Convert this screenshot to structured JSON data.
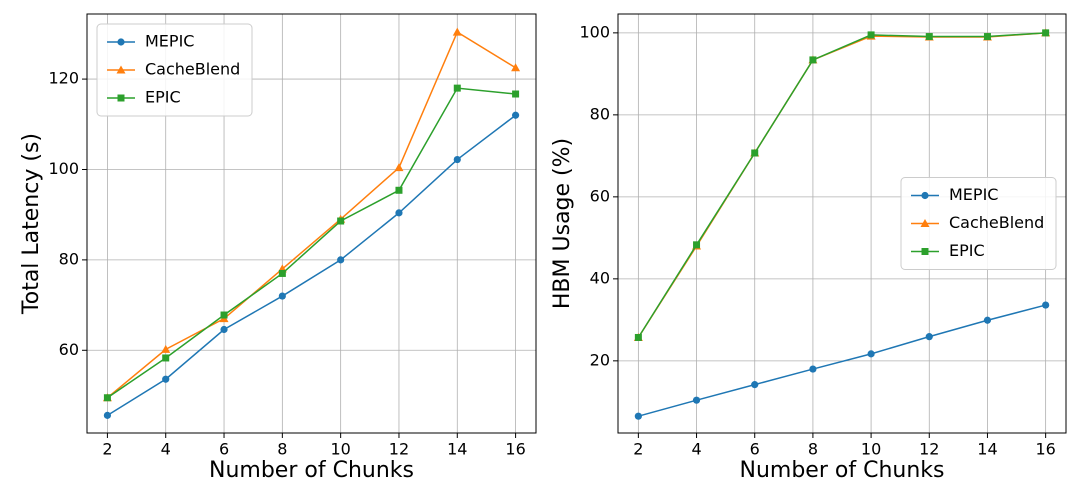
{
  "chart_data": [
    {
      "type": "line",
      "x_label": "Number of Chunks",
      "y_label": "Total Latency (s)",
      "x": [
        2,
        4,
        6,
        8,
        10,
        12,
        14,
        16
      ],
      "series": [
        {
          "name": "MEPIC",
          "color": "#1f77b4",
          "marker": "circle",
          "values": [
            45.6,
            53.6,
            64.6,
            72,
            80,
            90.4,
            102.2,
            112
          ]
        },
        {
          "name": "CacheBlend",
          "color": "#ff7f0e",
          "marker": "triangle",
          "values": [
            49.5,
            60.2,
            67,
            78,
            89,
            100.4,
            130.4,
            122.5
          ]
        },
        {
          "name": "EPIC",
          "color": "#2ca02c",
          "marker": "square",
          "values": [
            49.5,
            58.3,
            67.8,
            77,
            88.6,
            95.4,
            118,
            116.7
          ]
        }
      ],
      "xlim": [
        1.3,
        16.7
      ],
      "ylim": [
        41.7,
        134.4
      ],
      "xticks": [
        2,
        4,
        6,
        8,
        10,
        12,
        14,
        16
      ],
      "yticks": [
        60,
        80,
        100,
        120
      ],
      "grid": true,
      "legend": "upper left"
    },
    {
      "type": "line",
      "x_label": "Number of Chunks",
      "y_label": "HBM Usage (%)",
      "x": [
        2,
        4,
        6,
        8,
        10,
        12,
        14,
        16
      ],
      "series": [
        {
          "name": "MEPIC",
          "color": "#1f77b4",
          "marker": "circle",
          "values": [
            6.5,
            10.4,
            14.2,
            18,
            21.7,
            25.9,
            29.9,
            33.6
          ]
        },
        {
          "name": "CacheBlend",
          "color": "#ff7f0e",
          "marker": "triangle",
          "values": [
            25.7,
            48,
            70.7,
            93.4,
            99.2,
            99,
            99,
            100
          ]
        },
        {
          "name": "EPIC",
          "color": "#2ca02c",
          "marker": "square",
          "values": [
            25.7,
            48.3,
            70.7,
            93.4,
            99.5,
            99.1,
            99.1,
            100
          ]
        }
      ],
      "xlim": [
        1.3,
        16.7
      ],
      "ylim": [
        2.4,
        104.6
      ],
      "xticks": [
        2,
        4,
        6,
        8,
        10,
        12,
        14,
        16
      ],
      "yticks": [
        20,
        40,
        60,
        80,
        100
      ],
      "grid": true,
      "legend": "center right"
    }
  ]
}
